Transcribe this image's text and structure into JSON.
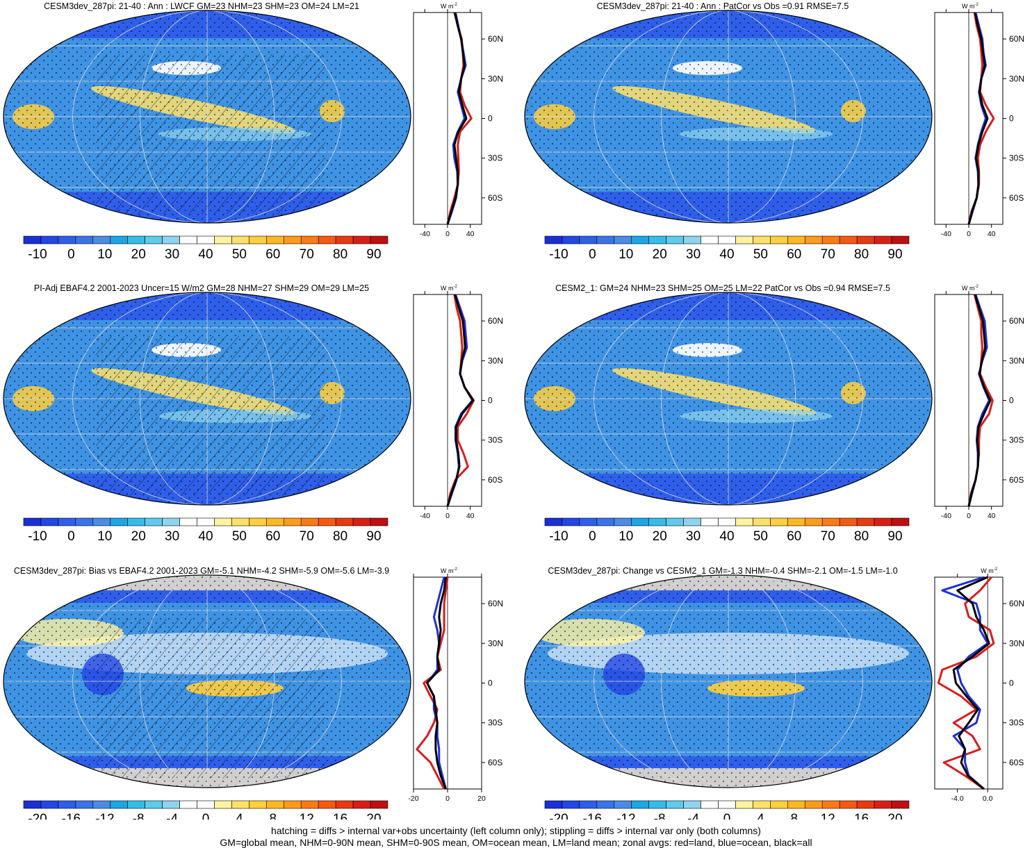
{
  "colors": {
    "cbar_absolute": [
      "#1a2fd6",
      "#2346e6",
      "#2f5fea",
      "#3a74e8",
      "#4a8ce6",
      "#1ba6e6",
      "#35bde9",
      "#5ecbec",
      "#8fd3ee",
      "#ffffff",
      "#ffffff",
      "#fff2a0",
      "#ffe16a",
      "#ffcf3c",
      "#ffb820",
      "#ff9b1a",
      "#ff7a12",
      "#f55a10",
      "#e83a10",
      "#d81f14",
      "#c00f10"
    ],
    "cbar_diff": [
      "#1a2fd6",
      "#2346e6",
      "#2f5fea",
      "#3a74e8",
      "#4a8ce6",
      "#1ba6e6",
      "#35bde9",
      "#5ecbec",
      "#8fd3ee",
      "#ffffff",
      "#ffffff",
      "#fff2a0",
      "#ffe16a",
      "#ffcf3c",
      "#ffb820",
      "#ff9b1a",
      "#ff7a12",
      "#f55a10",
      "#e83a10",
      "#d81f14",
      "#c00f10"
    ],
    "land": "#d81c1c",
    "ocean": "#1d2fd8",
    "all": "#000000",
    "ocean_fill": "#3f93e4",
    "missing": "#cfcfcf"
  },
  "panels": [
    {
      "title": "CESM3dev_287pi: 21-40 : Ann : LWCF GM=23 NHM=23 SHM=23 OM=24 LM=21",
      "hatched": true,
      "cbar": "absolute",
      "cbar_labels": [
        "-10",
        "0",
        "10",
        "20",
        "30",
        "40",
        "50",
        "60",
        "70",
        "80",
        "90"
      ],
      "profile": {
        "unit": "W m",
        "unit_sup": "-2",
        "xticks": [
          "-40",
          "0",
          "40"
        ],
        "xlim": [
          -60,
          60
        ],
        "yticks": [
          "60N",
          "30N",
          "0",
          "30S",
          "60S"
        ]
      }
    },
    {
      "title": "CESM3dev_287pi: 21-40 : Ann : PatCor vs Obs =0.91 RMSE=7.5",
      "hatched": false,
      "cbar": "absolute",
      "cbar_labels": [
        "-10",
        "0",
        "10",
        "20",
        "30",
        "40",
        "50",
        "60",
        "70",
        "80",
        "90"
      ],
      "profile": {
        "unit": "W m",
        "unit_sup": "-2",
        "xticks": [
          "-40",
          "0",
          "40"
        ],
        "xlim": [
          -60,
          60
        ],
        "yticks": [
          "60N",
          "30N",
          "0",
          "30S",
          "60S"
        ]
      }
    },
    {
      "title": "PI-Adj EBAF4.2 2001-2023 Uncer=15 W/m2 GM=28 NHM=27 SHM=29 OM=29 LM=25",
      "hatched": true,
      "cbar": "absolute",
      "cbar_labels": [
        "-10",
        "0",
        "10",
        "20",
        "30",
        "40",
        "50",
        "60",
        "70",
        "80",
        "90"
      ],
      "profile": {
        "unit": "W m",
        "unit_sup": "-2",
        "xticks": [
          "-40",
          "0",
          "40"
        ],
        "xlim": [
          -60,
          60
        ],
        "yticks": [
          "60N",
          "30N",
          "0",
          "30S",
          "60S"
        ]
      }
    },
    {
      "title": "CESM2_1: GM=24 NHM=23 SHM=25 OM=25 LM=22 PatCor vs Obs =0.94 RMSE=7.5",
      "hatched": false,
      "cbar": "absolute",
      "cbar_labels": [
        "-10",
        "0",
        "10",
        "20",
        "30",
        "40",
        "50",
        "60",
        "70",
        "80",
        "90"
      ],
      "profile": {
        "unit": "W m",
        "unit_sup": "-2",
        "xticks": [
          "-40",
          "0",
          "40"
        ],
        "xlim": [
          -60,
          60
        ],
        "yticks": [
          "60N",
          "30N",
          "0",
          "30S",
          "60S"
        ]
      }
    },
    {
      "title": "CESM3dev_287pi: Bias vs EBAF4.2 2001-2023 GM=-5.1 NHM=-4.2 SHM=-5.9 OM=-5.6 LM=-3.9",
      "hatched": true,
      "cbar": "diff",
      "cbar_labels": [
        "-20",
        "-16",
        "-12",
        "-8",
        "-4",
        "0",
        "4",
        "8",
        "12",
        "16",
        "20"
      ],
      "profile": {
        "unit": "W m",
        "unit_sup": "-2",
        "xticks": [
          "-20",
          "0",
          "20"
        ],
        "xlim": [
          -20,
          20
        ],
        "yticks": [
          "60N",
          "30N",
          "0",
          "30S",
          "60S"
        ]
      }
    },
    {
      "title": "CESM3dev_287pi: Change vs CESM2_1 GM=-1.3 NHM=-0.4 SHM=-2.1 OM=-1.5 LM=-1.0",
      "hatched": false,
      "cbar": "diff",
      "cbar_labels": [
        "-20",
        "-16",
        "-12",
        "-8",
        "-4",
        "0",
        "4",
        "8",
        "12",
        "16",
        "20"
      ],
      "profile": {
        "unit": "W m",
        "unit_sup": "-2",
        "xticks": [
          "-4.0",
          "0.0"
        ],
        "xlim": [
          -7,
          2
        ],
        "yticks": [
          "60N",
          "30N",
          "0",
          "30S",
          "60S"
        ]
      }
    }
  ],
  "chart_data": [
    {
      "type": "line",
      "x_units": "W m-2",
      "y_units": "latitude",
      "lat": [
        -80,
        -70,
        -60,
        -50,
        -40,
        -30,
        -20,
        -10,
        0,
        10,
        20,
        30,
        40,
        50,
        60,
        70,
        80
      ],
      "series": [
        {
          "name": "land",
          "color": "#d81c1c",
          "values": [
            0,
            5,
            12,
            18,
            20,
            19,
            18,
            22,
            42,
            30,
            22,
            24,
            28,
            27,
            25,
            18,
            12
          ]
        },
        {
          "name": "ocean",
          "color": "#1d2fd8",
          "values": [
            0,
            8,
            15,
            18,
            17,
            12,
            10,
            18,
            30,
            24,
            18,
            24,
            32,
            28,
            24,
            19,
            14
          ]
        },
        {
          "name": "all",
          "color": "#000000",
          "values": [
            0,
            7,
            14,
            18,
            18,
            15,
            12,
            19,
            33,
            26,
            20,
            24,
            30,
            27,
            24,
            18,
            13
          ]
        }
      ]
    },
    {
      "type": "line",
      "x_units": "W m-2",
      "y_units": "latitude",
      "lat": [
        -80,
        -70,
        -60,
        -50,
        -40,
        -30,
        -20,
        -10,
        0,
        10,
        20,
        30,
        40,
        50,
        60,
        70,
        80
      ],
      "series": [
        {
          "name": "land",
          "color": "#d81c1c",
          "values": [
            0,
            5,
            14,
            18,
            18,
            16,
            20,
            30,
            44,
            30,
            20,
            22,
            24,
            22,
            20,
            14,
            10
          ]
        },
        {
          "name": "ocean",
          "color": "#1d2fd8",
          "values": [
            0,
            7,
            14,
            17,
            16,
            12,
            16,
            22,
            30,
            22,
            18,
            22,
            30,
            26,
            24,
            18,
            12
          ]
        },
        {
          "name": "all",
          "color": "#000000",
          "values": [
            0,
            6,
            14,
            17,
            17,
            13,
            17,
            24,
            33,
            24,
            19,
            22,
            28,
            25,
            22,
            16,
            11
          ]
        }
      ]
    },
    {
      "type": "line",
      "x_units": "W m-2",
      "y_units": "latitude",
      "lat": [
        -80,
        -70,
        -60,
        -50,
        -40,
        -30,
        -20,
        -10,
        0,
        10,
        20,
        30,
        40,
        50,
        60,
        70,
        80
      ],
      "series": [
        {
          "name": "land",
          "color": "#d81c1c",
          "values": [
            0,
            5,
            14,
            36,
            28,
            18,
            18,
            34,
            46,
            30,
            22,
            24,
            26,
            24,
            22,
            16,
            12
          ]
        },
        {
          "name": "ocean",
          "color": "#1d2fd8",
          "values": [
            0,
            8,
            16,
            20,
            18,
            14,
            14,
            24,
            44,
            30,
            22,
            26,
            34,
            32,
            30,
            22,
            14
          ]
        },
        {
          "name": "all",
          "color": "#000000",
          "values": [
            0,
            7,
            15,
            21,
            19,
            15,
            15,
            26,
            45,
            30,
            22,
            25,
            31,
            29,
            27,
            20,
            13
          ]
        }
      ]
    },
    {
      "type": "line",
      "x_units": "W m-2",
      "y_units": "latitude",
      "lat": [
        -80,
        -70,
        -60,
        -50,
        -40,
        -30,
        -20,
        -10,
        0,
        10,
        20,
        30,
        40,
        50,
        60,
        70,
        80
      ],
      "series": [
        {
          "name": "land",
          "color": "#d81c1c",
          "values": [
            0,
            4,
            12,
            16,
            18,
            18,
            20,
            36,
            42,
            30,
            20,
            22,
            24,
            22,
            22,
            16,
            10
          ]
        },
        {
          "name": "ocean",
          "color": "#1d2fd8",
          "values": [
            0,
            6,
            12,
            16,
            16,
            14,
            16,
            24,
            36,
            26,
            18,
            24,
            32,
            30,
            28,
            20,
            12
          ]
        },
        {
          "name": "all",
          "color": "#000000",
          "values": [
            0,
            5,
            12,
            16,
            17,
            15,
            17,
            27,
            38,
            27,
            19,
            23,
            29,
            27,
            25,
            18,
            11
          ]
        }
      ]
    },
    {
      "type": "line",
      "x_units": "W m-2",
      "y_units": "latitude",
      "lat": [
        -80,
        -70,
        -60,
        -50,
        -40,
        -30,
        -20,
        -10,
        0,
        10,
        20,
        30,
        40,
        50,
        60,
        70,
        80
      ],
      "series": [
        {
          "name": "land",
          "color": "#d81c1c",
          "values": [
            -2,
            -6,
            -10,
            -18,
            -12,
            -8,
            -6,
            -10,
            -14,
            -4,
            -6,
            -4,
            -2,
            -2,
            -2,
            -1,
            0
          ]
        },
        {
          "name": "ocean",
          "color": "#1d2fd8",
          "values": [
            -1,
            -3,
            -5,
            -5,
            -6,
            -6,
            -8,
            -8,
            -12,
            -6,
            -6,
            -5,
            -6,
            -8,
            -6,
            -4,
            -2
          ]
        },
        {
          "name": "all",
          "color": "#000000",
          "values": [
            -1,
            -4,
            -6,
            -7,
            -7,
            -6,
            -7,
            -8,
            -12,
            -5,
            -6,
            -5,
            -4,
            -5,
            -4,
            -2,
            -1
          ]
        }
      ]
    },
    {
      "type": "line",
      "x_units": "W m-2",
      "y_units": "latitude",
      "lat": [
        -80,
        -70,
        -60,
        -50,
        -40,
        -30,
        -20,
        -10,
        0,
        10,
        20,
        30,
        40,
        50,
        60,
        70,
        80
      ],
      "series": [
        {
          "name": "land",
          "color": "#d81c1c",
          "values": [
            -0.5,
            -3.0,
            -5.8,
            -1.0,
            -2.0,
            -4.5,
            -1.5,
            -3.5,
            -6.5,
            -6.0,
            -1.5,
            0.8,
            0.3,
            -2.5,
            -3.0,
            -1.0,
            0.5
          ]
        },
        {
          "name": "ocean",
          "color": "#1d2fd8",
          "values": [
            -0.5,
            -2.5,
            -3.0,
            -3.0,
            -4.5,
            -1.5,
            -1.0,
            -2.5,
            -3.5,
            -4.0,
            -2.5,
            0.0,
            -1.0,
            -1.0,
            -1.5,
            -6.0,
            -0.5
          ]
        },
        {
          "name": "all",
          "color": "#000000",
          "values": [
            -0.5,
            -2.6,
            -3.5,
            -3.0,
            -3.8,
            -2.5,
            -1.3,
            -2.8,
            -4.2,
            -4.5,
            -2.0,
            0.2,
            -0.5,
            -1.5,
            -2.0,
            -4.0,
            0.0
          ]
        }
      ]
    }
  ],
  "footer": {
    "line1": "hatching = diffs > internal var+obs uncertainty (left column only); stippling = diffs > internal var only (both columns)",
    "line2": "GM=global mean, NHM=0-90N mean, SHM=0-90S mean, OM=ocean mean, LM=land mean; zonal avgs: red=land, blue=ocean, black=all"
  }
}
